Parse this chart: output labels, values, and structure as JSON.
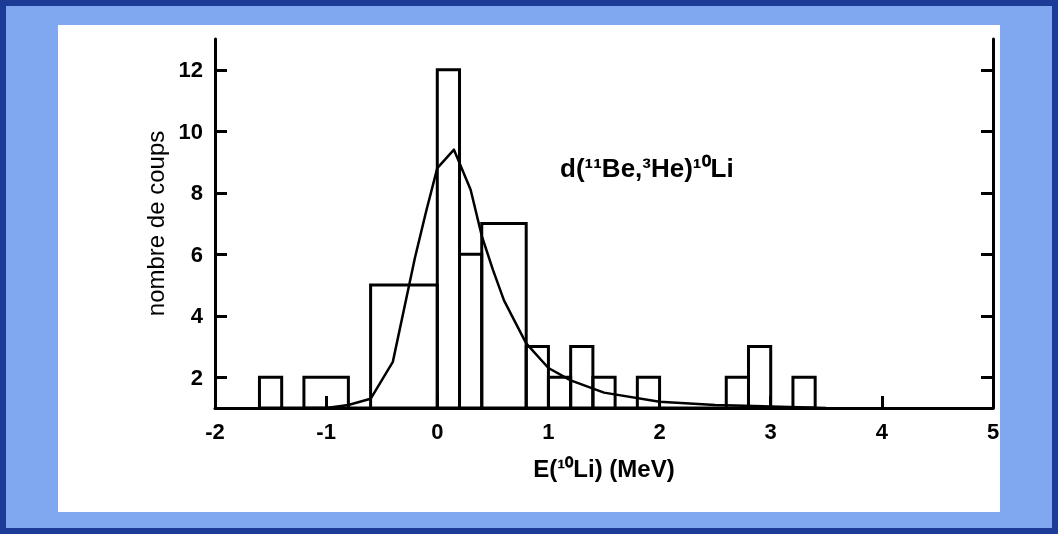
{
  "chart_data": {
    "type": "histogram",
    "title": "d(¹¹Be,³He)¹⁰Li",
    "xlabel": "E(¹⁰Li) (MeV)",
    "ylabel": "nombre de coups",
    "bins": [
      -1.6,
      -1.4,
      -1.2,
      -0.8,
      -0.6,
      0,
      0.2,
      0.4,
      0.8,
      1.0,
      1.2,
      1.4,
      1.6,
      1.8,
      2.0,
      2.6,
      2.8,
      3.0,
      3.2,
      3.4
    ],
    "values": [
      2,
      1,
      2,
      1,
      5,
      12,
      6,
      7,
      3,
      2,
      3,
      2,
      1,
      2,
      1,
      2,
      3,
      1,
      2
    ],
    "color": "#000000",
    "series": [
      {
        "type": "line",
        "color": "#000000",
        "x": [
          -1.2,
          -1.0,
          -0.8,
          -0.6,
          -0.4,
          -0.2,
          -0.1,
          0,
          0.15,
          0.3,
          0.4,
          0.5,
          0.6,
          0.8,
          1.0,
          1.2,
          1.5,
          2.0,
          2.5,
          3.0,
          3.5
        ],
        "values": [
          1.0,
          1.0,
          1.1,
          1.3,
          2.5,
          5.9,
          7.4,
          8.8,
          9.4,
          8.1,
          6.6,
          5.5,
          4.5,
          3.1,
          2.3,
          1.9,
          1.5,
          1.2,
          1.1,
          1.05,
          1.0
        ]
      }
    ],
    "xlim": [
      -2,
      5
    ],
    "xticks": [
      -2,
      -1,
      0,
      1,
      2,
      3,
      4,
      5
    ],
    "ylim": [
      1,
      13
    ],
    "yticks": [
      2,
      4,
      6,
      8,
      10,
      12
    ],
    "grid": false,
    "marker": "none",
    "line_style": "solid"
  }
}
